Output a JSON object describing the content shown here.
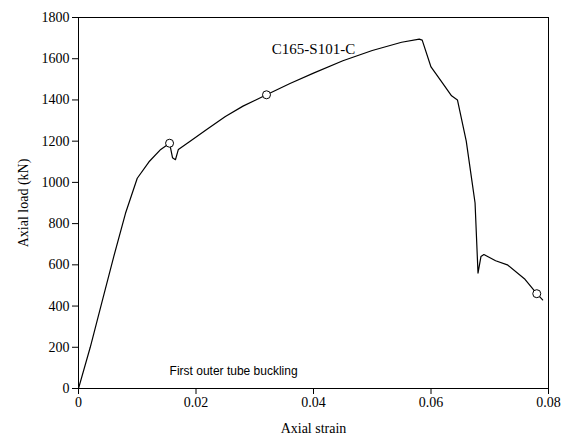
{
  "chart_data": {
    "type": "line",
    "title": "C165-S101-C",
    "x_label": "Axial strain",
    "y_label": "Axial load (kN)",
    "xlim": [
      0,
      0.08
    ],
    "xticks": [
      0,
      0.02,
      0.04,
      0.06,
      0.08
    ],
    "ylim": [
      0,
      1800
    ],
    "yticks": [
      0,
      200,
      400,
      600,
      800,
      1000,
      1200,
      1400,
      1600,
      1800
    ],
    "grid": false,
    "x": [
      0,
      0.002,
      0.004,
      0.006,
      0.008,
      0.01,
      0.012,
      0.014,
      0.0155,
      0.016,
      0.0165,
      0.017,
      0.019,
      0.022,
      0.025,
      0.028,
      0.032,
      0.036,
      0.04,
      0.045,
      0.05,
      0.055,
      0.058,
      0.0585,
      0.06,
      0.062,
      0.0635,
      0.0645,
      0.066,
      0.067,
      0.0675,
      0.068,
      0.0685,
      0.069,
      0.071,
      0.073,
      0.076,
      0.078,
      0.079
    ],
    "series": [
      {
        "color": "#000000",
        "line_style": "solid",
        "values": [
          0,
          200,
          420,
          640,
          850,
          1020,
          1100,
          1160,
          1190,
          1120,
          1110,
          1160,
          1200,
          1260,
          1320,
          1370,
          1425,
          1480,
          1530,
          1590,
          1640,
          1680,
          1695,
          1690,
          1560,
          1480,
          1420,
          1400,
          1200,
          1000,
          900,
          560,
          640,
          650,
          620,
          600,
          530,
          460,
          430
        ]
      }
    ],
    "marked_points": [
      {
        "x": 0.0155,
        "y": 1190,
        "label": "First outer tube buckling"
      },
      {
        "x": 0.032,
        "y": 1425
      },
      {
        "x": 0.078,
        "y": 460
      }
    ],
    "marker": "circle"
  }
}
